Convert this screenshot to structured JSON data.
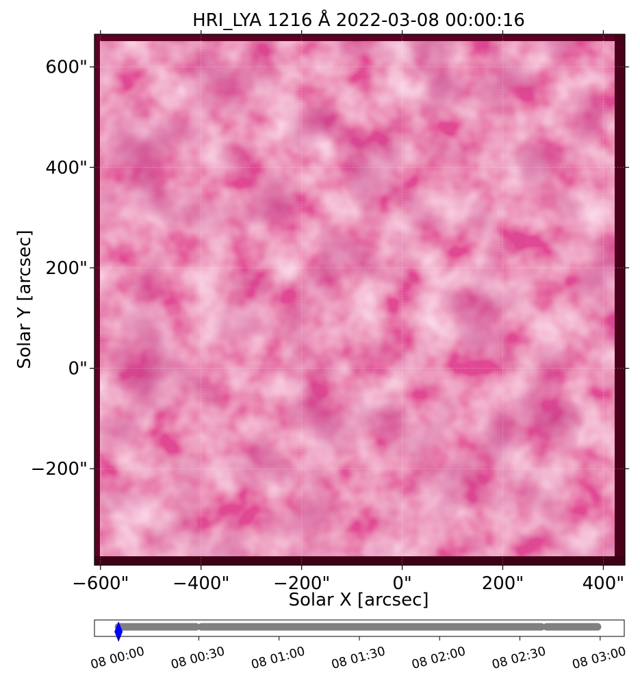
{
  "chart_data": [
    {
      "type": "heatmap",
      "title": "HRI_LYA 1216 Å 2022-03-08 00:00:16",
      "xlabel": "Solar X [arcsec]",
      "ylabel": "Solar Y [arcsec]",
      "xlim": [
        -612,
        443
      ],
      "ylim": [
        -392,
        665
      ],
      "x_ticks": [
        -600,
        -400,
        -200,
        0,
        200,
        400
      ],
      "x_tick_labels": [
        "−600\"",
        "−400\"",
        "−200\"",
        "0\"",
        "200\"",
        "400\""
      ],
      "y_ticks": [
        -200,
        0,
        200,
        400,
        600
      ],
      "y_tick_labels": [
        "−200\"",
        "0\"",
        "200\"",
        "400\"",
        "600\""
      ],
      "grid": true,
      "colormap": {
        "dark": "#5a0022",
        "mid": "#d93a88",
        "bright": "#ffe6f2"
      },
      "description_colors": {
        "border": "#6b0030",
        "field": "#e24a95"
      }
    },
    {
      "type": "scatter",
      "x_tick_labels": [
        "08 00:00",
        "08 00:30",
        "08 01:00",
        "08 01:30",
        "08 02:00",
        "08 02:30",
        "08 03:00"
      ],
      "xlim_minutes": [
        -9,
        189
      ],
      "segments": [
        {
          "start_min": 0,
          "end_min": 29
        },
        {
          "start_min": 31,
          "end_min": 158
        },
        {
          "start_min": 160,
          "end_min": 179
        }
      ],
      "current_marker_min": 0,
      "colors": {
        "points": "#808080",
        "current": "#0000ff"
      }
    }
  ]
}
